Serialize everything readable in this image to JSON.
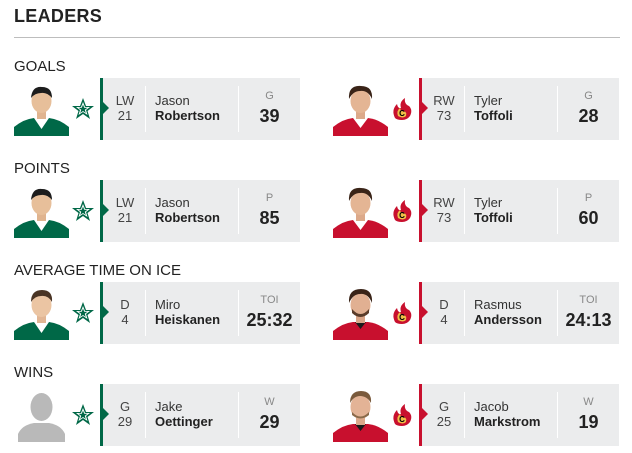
{
  "page": {
    "title": "LEADERS"
  },
  "colors": {
    "stars_green": "#006847",
    "flames_red": "#c8102e",
    "panel_bg": "#ebeced"
  },
  "teams": {
    "home": {
      "logo_icon": "dallas-stars-logo-icon"
    },
    "away": {
      "logo_icon": "calgary-flames-logo-icon"
    }
  },
  "sections": [
    {
      "label": "GOALS",
      "left": {
        "pos": "LW",
        "number": "21",
        "first": "Jason",
        "last": "Robertson",
        "stat_label": "G",
        "stat_value": "39"
      },
      "right": {
        "pos": "RW",
        "number": "73",
        "first": "Tyler",
        "last": "Toffoli",
        "stat_label": "G",
        "stat_value": "28"
      }
    },
    {
      "label": "POINTS",
      "left": {
        "pos": "LW",
        "number": "21",
        "first": "Jason",
        "last": "Robertson",
        "stat_label": "P",
        "stat_value": "85"
      },
      "right": {
        "pos": "RW",
        "number": "73",
        "first": "Tyler",
        "last": "Toffoli",
        "stat_label": "P",
        "stat_value": "60"
      }
    },
    {
      "label": "AVERAGE TIME ON ICE",
      "left": {
        "pos": "D",
        "number": "4",
        "first": "Miro",
        "last": "Heiskanen",
        "stat_label": "TOI",
        "stat_value": "25:32"
      },
      "right": {
        "pos": "D",
        "number": "4",
        "first": "Rasmus",
        "last": "Andersson",
        "stat_label": "TOI",
        "stat_value": "24:13"
      }
    },
    {
      "label": "WINS",
      "left": {
        "pos": "G",
        "number": "29",
        "first": "Jake",
        "last": "Oettinger",
        "stat_label": "W",
        "stat_value": "29"
      },
      "right": {
        "pos": "G",
        "number": "25",
        "first": "Jacob",
        "last": "Markstrom",
        "stat_label": "W",
        "stat_value": "19"
      }
    }
  ]
}
